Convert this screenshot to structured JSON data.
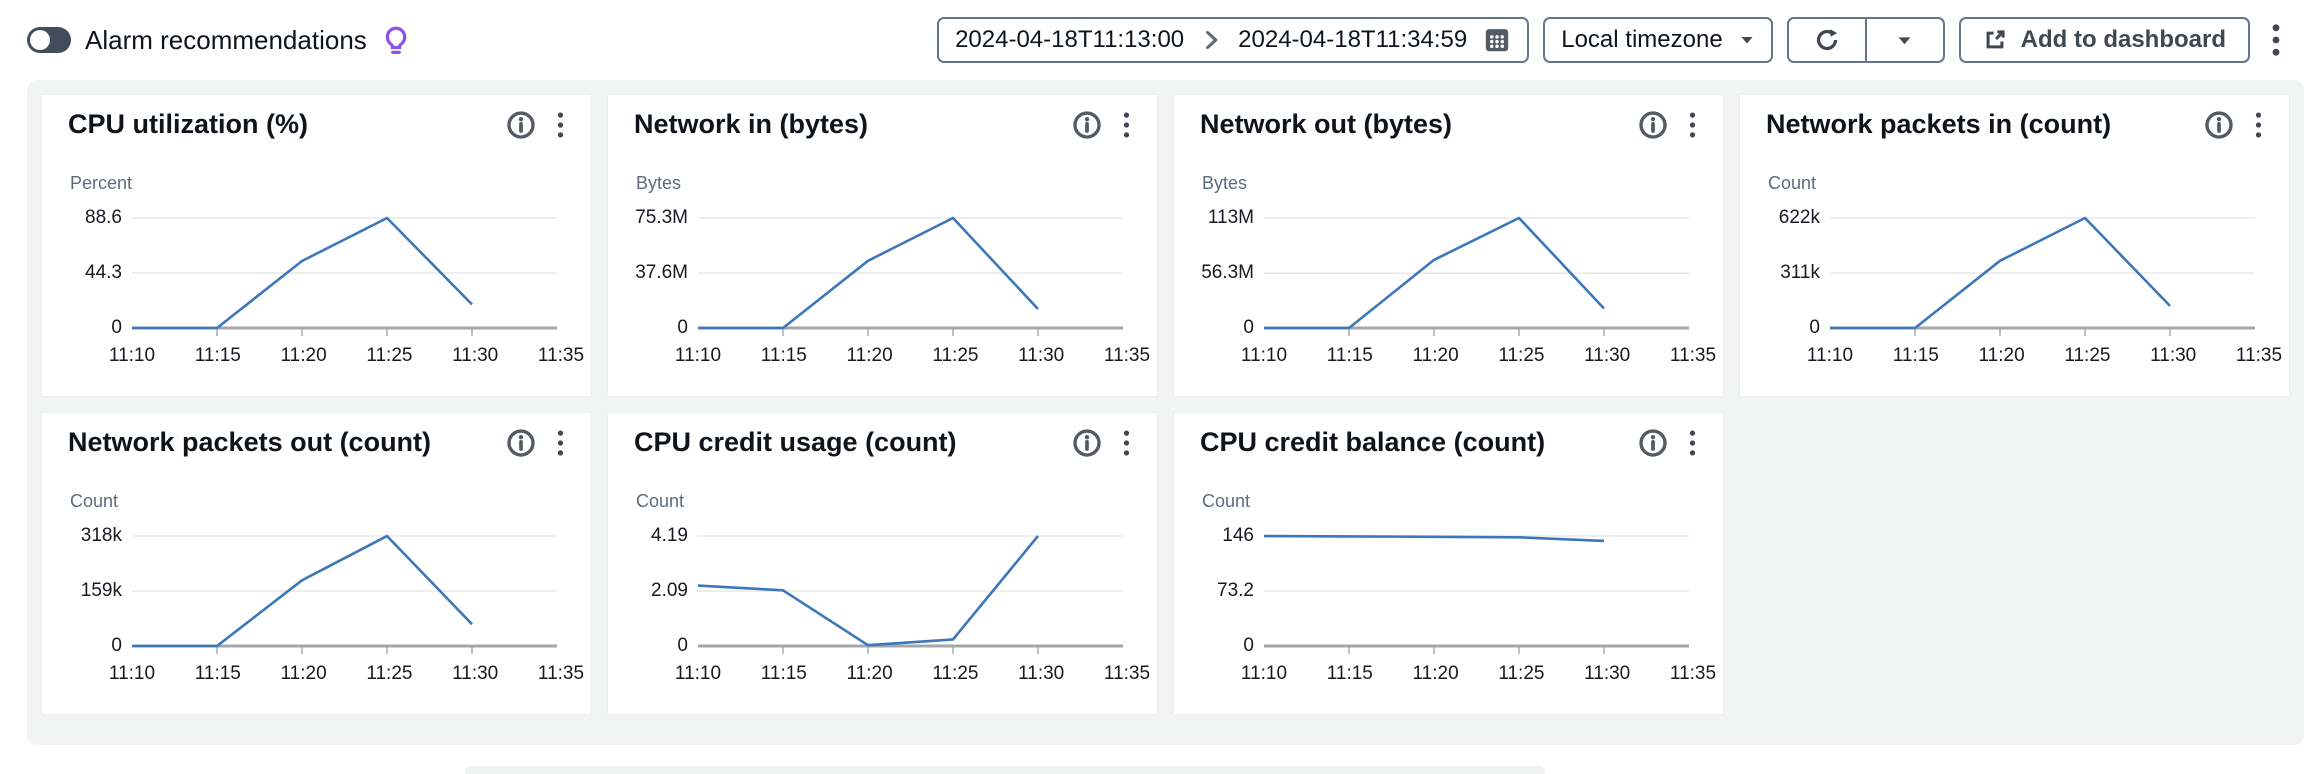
{
  "header": {
    "alarm_recommendations_label": "Alarm recommendations",
    "time_start": "2024-04-18T11:13:00",
    "time_end": "2024-04-18T11:34:59",
    "timezone_selected": "Local timezone",
    "add_to_dashboard_label": "Add to dashboard",
    "icons": [
      "lightbulb-icon",
      "calendar-icon",
      "chevron-right-icon",
      "caret-down-icon",
      "refresh-icon",
      "external-link-icon",
      "vertical-ellipsis-icon"
    ]
  },
  "colors": {
    "line": "#3c77b9",
    "panel_bg": "#f2f3f3",
    "card_bg": "#ffffff",
    "toggle_off_bg": "#414d5c",
    "bulb_purple": "#8a52e8",
    "icon_gray": "#545b64",
    "grid_line": "#e8e9ea",
    "axis_line": "#a3a7ab",
    "tick_mark": "#bcc1c6",
    "title_text": "#0f141a",
    "muted_text": "#5f6b7a"
  },
  "card_icons": [
    "info-icon",
    "vertical-ellipsis-icon"
  ],
  "x_axis": {
    "tick_labels": [
      "11:10",
      "11:15",
      "11:20",
      "11:25",
      "11:30",
      "11:35"
    ],
    "tick_positions_minutes": [
      0,
      5,
      10,
      15,
      20,
      25
    ],
    "range_minutes": [
      0,
      25
    ]
  },
  "chart_data": [
    {
      "type": "line",
      "title": "CPU utilization (%)",
      "unit": "Percent",
      "y_ticks": [
        {
          "label": "88.6",
          "value": 88.6
        },
        {
          "label": "44.3",
          "value": 44.3
        },
        {
          "label": "0",
          "value": 0
        }
      ],
      "y_max": 88.6,
      "series": [
        {
          "x_minutes": [
            0,
            5,
            10,
            15,
            20
          ],
          "values": [
            0,
            0,
            54,
            88.6,
            19
          ]
        }
      ]
    },
    {
      "type": "line",
      "title": "Network in (bytes)",
      "unit": "Bytes",
      "y_ticks": [
        {
          "label": "75.3M",
          "value": 75.3
        },
        {
          "label": "37.6M",
          "value": 37.6
        },
        {
          "label": "0",
          "value": 0
        }
      ],
      "y_max": 75.3,
      "series": [
        {
          "x_minutes": [
            0,
            5,
            10,
            15,
            20
          ],
          "values": [
            0,
            0,
            46,
            75.3,
            13
          ]
        }
      ]
    },
    {
      "type": "line",
      "title": "Network out (bytes)",
      "unit": "Bytes",
      "y_ticks": [
        {
          "label": "113M",
          "value": 113
        },
        {
          "label": "56.3M",
          "value": 56.3
        },
        {
          "label": "0",
          "value": 0
        }
      ],
      "y_max": 113,
      "series": [
        {
          "x_minutes": [
            0,
            5,
            10,
            15,
            20
          ],
          "values": [
            0,
            0,
            70,
            113,
            20
          ]
        }
      ]
    },
    {
      "type": "line",
      "title": "Network packets in (count)",
      "unit": "Count",
      "y_ticks": [
        {
          "label": "622k",
          "value": 622
        },
        {
          "label": "311k",
          "value": 311
        },
        {
          "label": "0",
          "value": 0
        }
      ],
      "y_max": 622,
      "series": [
        {
          "x_minutes": [
            0,
            5,
            10,
            15,
            20
          ],
          "values": [
            0,
            0,
            380,
            622,
            125
          ]
        }
      ]
    },
    {
      "type": "line",
      "title": "Network packets out (count)",
      "unit": "Count",
      "y_ticks": [
        {
          "label": "318k",
          "value": 318
        },
        {
          "label": "159k",
          "value": 159
        },
        {
          "label": "0",
          "value": 0
        }
      ],
      "y_max": 318,
      "series": [
        {
          "x_minutes": [
            0,
            5,
            10,
            15,
            20
          ],
          "values": [
            0,
            0,
            190,
            318,
            63
          ]
        }
      ]
    },
    {
      "type": "line",
      "title": "CPU credit usage (count)",
      "unit": "Count",
      "y_ticks": [
        {
          "label": "4.19",
          "value": 4.19
        },
        {
          "label": "2.09",
          "value": 2.09
        },
        {
          "label": "0",
          "value": 0
        }
      ],
      "y_max": 4.19,
      "series": [
        {
          "x_minutes": [
            0,
            5,
            10,
            15,
            20
          ],
          "values": [
            2.3,
            2.12,
            0.03,
            0.25,
            4.19
          ]
        }
      ]
    },
    {
      "type": "line",
      "title": "CPU credit balance (count)",
      "unit": "Count",
      "y_ticks": [
        {
          "label": "146",
          "value": 146
        },
        {
          "label": "73.2",
          "value": 73.2
        },
        {
          "label": "0",
          "value": 0
        }
      ],
      "y_max": 146,
      "series": [
        {
          "x_minutes": [
            0,
            5,
            10,
            15,
            20
          ],
          "values": [
            146,
            145.5,
            145,
            144.3,
            139.5
          ]
        }
      ]
    }
  ]
}
